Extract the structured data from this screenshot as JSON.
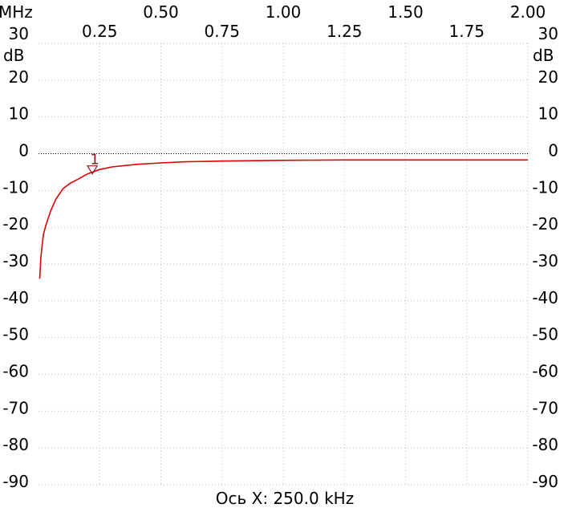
{
  "chart_data": {
    "type": "line",
    "x_unit_label": "MHz",
    "y_unit_label": "dB",
    "xlim": [
      0,
      2.0
    ],
    "ylim": [
      -90,
      30
    ],
    "x_ticks_top": [
      "0.50",
      "1.00",
      "1.50",
      "2.00"
    ],
    "x_ticks_bottom": [
      "0.25",
      "0.75",
      "1.25",
      "1.75"
    ],
    "x_ticks_top_values": [
      0.5,
      1.0,
      1.5,
      2.0
    ],
    "x_ticks_bottom_values": [
      0.25,
      0.75,
      1.25,
      1.75
    ],
    "y_ticks": [
      30,
      20,
      10,
      0,
      -10,
      -20,
      -30,
      -40,
      -50,
      -60,
      -70,
      -80,
      -90
    ],
    "grid": true,
    "reference_line_y": 0,
    "xlabel": "Ось X: 250.0 kHz",
    "series": [
      {
        "color": "#e00000",
        "x": [
          0.005,
          0.01,
          0.02,
          0.03,
          0.05,
          0.07,
          0.1,
          0.13,
          0.16,
          0.2,
          0.25,
          0.3,
          0.4,
          0.5,
          0.6,
          0.75,
          1.0,
          1.25,
          1.5,
          1.75,
          2.0
        ],
        "y": [
          -34,
          -28,
          -22,
          -19.5,
          -15.5,
          -12.5,
          -9.5,
          -8,
          -7,
          -5.5,
          -4.3,
          -3.6,
          -2.9,
          -2.5,
          -2.2,
          -2,
          -1.8,
          -1.7,
          -1.7,
          -1.7,
          -1.7
        ]
      }
    ],
    "markers": [
      {
        "label": "1",
        "x": 0.22,
        "y": -5.5
      }
    ]
  }
}
